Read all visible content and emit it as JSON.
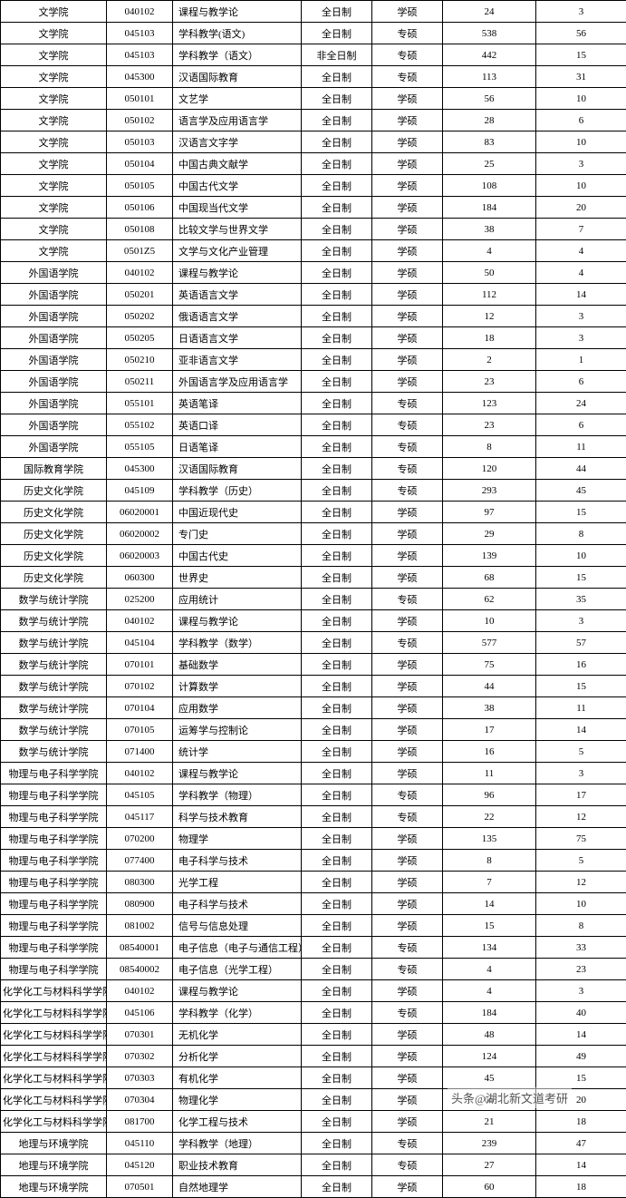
{
  "watermark": "头条@湖北新文道考研",
  "table": {
    "columns": [
      {
        "key": "college",
        "class": "col-college"
      },
      {
        "key": "code",
        "class": "col-code"
      },
      {
        "key": "major",
        "class": "col-major"
      },
      {
        "key": "mode",
        "class": "col-mode"
      },
      {
        "key": "type",
        "class": "col-type"
      },
      {
        "key": "num1",
        "class": "col-num1"
      },
      {
        "key": "num2",
        "class": "col-num2"
      }
    ],
    "rows": [
      [
        "文学院",
        "040102",
        "课程与教学论",
        "全日制",
        "学硕",
        "24",
        "3"
      ],
      [
        "文学院",
        "045103",
        "学科教学(语文)",
        "全日制",
        "专硕",
        "538",
        "56"
      ],
      [
        "文学院",
        "045103",
        "学科教学（语文）",
        "非全日制",
        "专硕",
        "442",
        "15"
      ],
      [
        "文学院",
        "045300",
        "汉语国际教育",
        "全日制",
        "专硕",
        "113",
        "31"
      ],
      [
        "文学院",
        "050101",
        "文艺学",
        "全日制",
        "学硕",
        "56",
        "10"
      ],
      [
        "文学院",
        "050102",
        "语言学及应用语言学",
        "全日制",
        "学硕",
        "28",
        "6"
      ],
      [
        "文学院",
        "050103",
        "汉语言文字学",
        "全日制",
        "学硕",
        "83",
        "10"
      ],
      [
        "文学院",
        "050104",
        "中国古典文献学",
        "全日制",
        "学硕",
        "25",
        "3"
      ],
      [
        "文学院",
        "050105",
        "中国古代文学",
        "全日制",
        "学硕",
        "108",
        "10"
      ],
      [
        "文学院",
        "050106",
        "中国现当代文学",
        "全日制",
        "学硕",
        "184",
        "20"
      ],
      [
        "文学院",
        "050108",
        "比较文学与世界文学",
        "全日制",
        "学硕",
        "38",
        "7"
      ],
      [
        "文学院",
        "0501Z5",
        "文学与文化产业管理",
        "全日制",
        "学硕",
        "4",
        "4"
      ],
      [
        "外国语学院",
        "040102",
        "课程与教学论",
        "全日制",
        "学硕",
        "50",
        "4"
      ],
      [
        "外国语学院",
        "050201",
        "英语语言文学",
        "全日制",
        "学硕",
        "112",
        "14"
      ],
      [
        "外国语学院",
        "050202",
        "俄语语言文学",
        "全日制",
        "学硕",
        "12",
        "3"
      ],
      [
        "外国语学院",
        "050205",
        "日语语言文学",
        "全日制",
        "学硕",
        "18",
        "3"
      ],
      [
        "外国语学院",
        "050210",
        "亚非语言文学",
        "全日制",
        "学硕",
        "2",
        "1"
      ],
      [
        "外国语学院",
        "050211",
        "外国语言学及应用语言学",
        "全日制",
        "学硕",
        "23",
        "6"
      ],
      [
        "外国语学院",
        "055101",
        "英语笔译",
        "全日制",
        "专硕",
        "123",
        "24"
      ],
      [
        "外国语学院",
        "055102",
        "英语口译",
        "全日制",
        "专硕",
        "23",
        "6"
      ],
      [
        "外国语学院",
        "055105",
        "日语笔译",
        "全日制",
        "专硕",
        "8",
        "11"
      ],
      [
        "国际教育学院",
        "045300",
        "汉语国际教育",
        "全日制",
        "专硕",
        "120",
        "44"
      ],
      [
        "历史文化学院",
        "045109",
        "学科教学（历史）",
        "全日制",
        "专硕",
        "293",
        "45"
      ],
      [
        "历史文化学院",
        "06020001",
        "中国近现代史",
        "全日制",
        "学硕",
        "97",
        "15"
      ],
      [
        "历史文化学院",
        "06020002",
        "专门史",
        "全日制",
        "学硕",
        "29",
        "8"
      ],
      [
        "历史文化学院",
        "06020003",
        "中国古代史",
        "全日制",
        "学硕",
        "139",
        "10"
      ],
      [
        "历史文化学院",
        "060300",
        "世界史",
        "全日制",
        "学硕",
        "68",
        "15"
      ],
      [
        "数学与统计学院",
        "025200",
        "应用统计",
        "全日制",
        "专硕",
        "62",
        "35"
      ],
      [
        "数学与统计学院",
        "040102",
        "课程与教学论",
        "全日制",
        "学硕",
        "10",
        "3"
      ],
      [
        "数学与统计学院",
        "045104",
        "学科教学（数学）",
        "全日制",
        "专硕",
        "577",
        "57"
      ],
      [
        "数学与统计学院",
        "070101",
        "基础数学",
        "全日制",
        "学硕",
        "75",
        "16"
      ],
      [
        "数学与统计学院",
        "070102",
        "计算数学",
        "全日制",
        "学硕",
        "44",
        "15"
      ],
      [
        "数学与统计学院",
        "070104",
        "应用数学",
        "全日制",
        "学硕",
        "38",
        "11"
      ],
      [
        "数学与统计学院",
        "070105",
        "运筹学与控制论",
        "全日制",
        "学硕",
        "17",
        "14"
      ],
      [
        "数学与统计学院",
        "071400",
        "统计学",
        "全日制",
        "学硕",
        "16",
        "5"
      ],
      [
        "物理与电子科学学院",
        "040102",
        "课程与教学论",
        "全日制",
        "学硕",
        "11",
        "3"
      ],
      [
        "物理与电子科学学院",
        "045105",
        "学科教学（物理）",
        "全日制",
        "专硕",
        "96",
        "17"
      ],
      [
        "物理与电子科学学院",
        "045117",
        "科学与技术教育",
        "全日制",
        "专硕",
        "22",
        "12"
      ],
      [
        "物理与电子科学学院",
        "070200",
        "物理学",
        "全日制",
        "学硕",
        "135",
        "75"
      ],
      [
        "物理与电子科学学院",
        "077400",
        "电子科学与技术",
        "全日制",
        "学硕",
        "8",
        "5"
      ],
      [
        "物理与电子科学学院",
        "080300",
        "光学工程",
        "全日制",
        "学硕",
        "7",
        "12"
      ],
      [
        "物理与电子科学学院",
        "080900",
        "电子科学与技术",
        "全日制",
        "学硕",
        "14",
        "10"
      ],
      [
        "物理与电子科学学院",
        "081002",
        "信号与信息处理",
        "全日制",
        "学硕",
        "15",
        "8"
      ],
      [
        "物理与电子科学学院",
        "08540001",
        "电子信息（电子与通信工程）",
        "全日制",
        "专硕",
        "134",
        "33"
      ],
      [
        "物理与电子科学学院",
        "08540002",
        "电子信息（光学工程）",
        "全日制",
        "专硕",
        "4",
        "23"
      ],
      [
        "化学化工与材料科学学院",
        "040102",
        "课程与教学论",
        "全日制",
        "学硕",
        "4",
        "3"
      ],
      [
        "化学化工与材料科学学院",
        "045106",
        "学科教学（化学）",
        "全日制",
        "专硕",
        "184",
        "40"
      ],
      [
        "化学化工与材料科学学院",
        "070301",
        "无机化学",
        "全日制",
        "学硕",
        "48",
        "14"
      ],
      [
        "化学化工与材料科学学院",
        "070302",
        "分析化学",
        "全日制",
        "学硕",
        "124",
        "49"
      ],
      [
        "化学化工与材料科学学院",
        "070303",
        "有机化学",
        "全日制",
        "学硕",
        "45",
        "15"
      ],
      [
        "化学化工与材料科学学院",
        "070304",
        "物理化学",
        "全日制",
        "学硕",
        "66",
        "20"
      ],
      [
        "化学化工与材料科学学院",
        "081700",
        "化学工程与技术",
        "全日制",
        "学硕",
        "21",
        "18"
      ],
      [
        "地理与环境学院",
        "045110",
        "学科教学（地理）",
        "全日制",
        "专硕",
        "239",
        "47"
      ],
      [
        "地理与环境学院",
        "045120",
        "职业技术教育",
        "全日制",
        "专硕",
        "27",
        "14"
      ],
      [
        "地理与环境学院",
        "070501",
        "自然地理学",
        "全日制",
        "学硕",
        "60",
        "18"
      ]
    ]
  }
}
